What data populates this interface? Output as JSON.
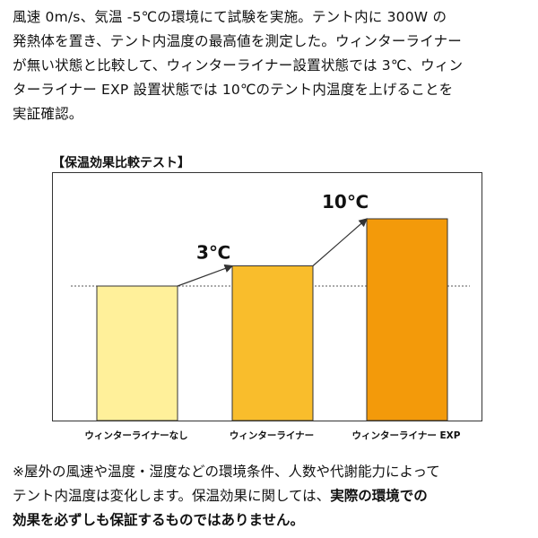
{
  "intro": {
    "lines": [
      "風速 0m/s、気温 -5℃の環境にて試験を実施。テント内に 300W の",
      "発熱体を置き、テント内温度の最高値を測定した。ウィンターライナー",
      "が無い状態と比較して、ウィンターライナー設置状態では 3℃、ウィン",
      "ターライナー EXP 設置状態では 10℃のテント内温度を上げることを",
      "実証確認。"
    ]
  },
  "chart_data": {
    "type": "bar",
    "title": "【保温効果比較テスト】",
    "categories": [
      "ウィンターライナーなし",
      "ウィンターライナー",
      "ウィンターライナー EXP"
    ],
    "values": [
      0,
      3,
      10
    ],
    "value_unit": "℃ increase vs. no liner",
    "annotations": [
      {
        "category": "ウィンターライナー",
        "label": "3℃"
      },
      {
        "category": "ウィンターライナー EXP",
        "label": "10℃"
      }
    ],
    "baseline": "dotted line at level of ウィンターライナーなし",
    "bar_colors": [
      "#fff09a",
      "#f9bd2c",
      "#f39a0a"
    ],
    "axes_visible": false,
    "grid": false
  },
  "note": {
    "line1": "※屋外の風速や温度・湿度などの環境条件、人数や代謝能力によって",
    "line2_normal": "テント内温度は変化します。保温効果に関しては、",
    "line2_bold": "実際の環境での",
    "line3_bold": "効果を必ずしも保証するものではありません。"
  }
}
